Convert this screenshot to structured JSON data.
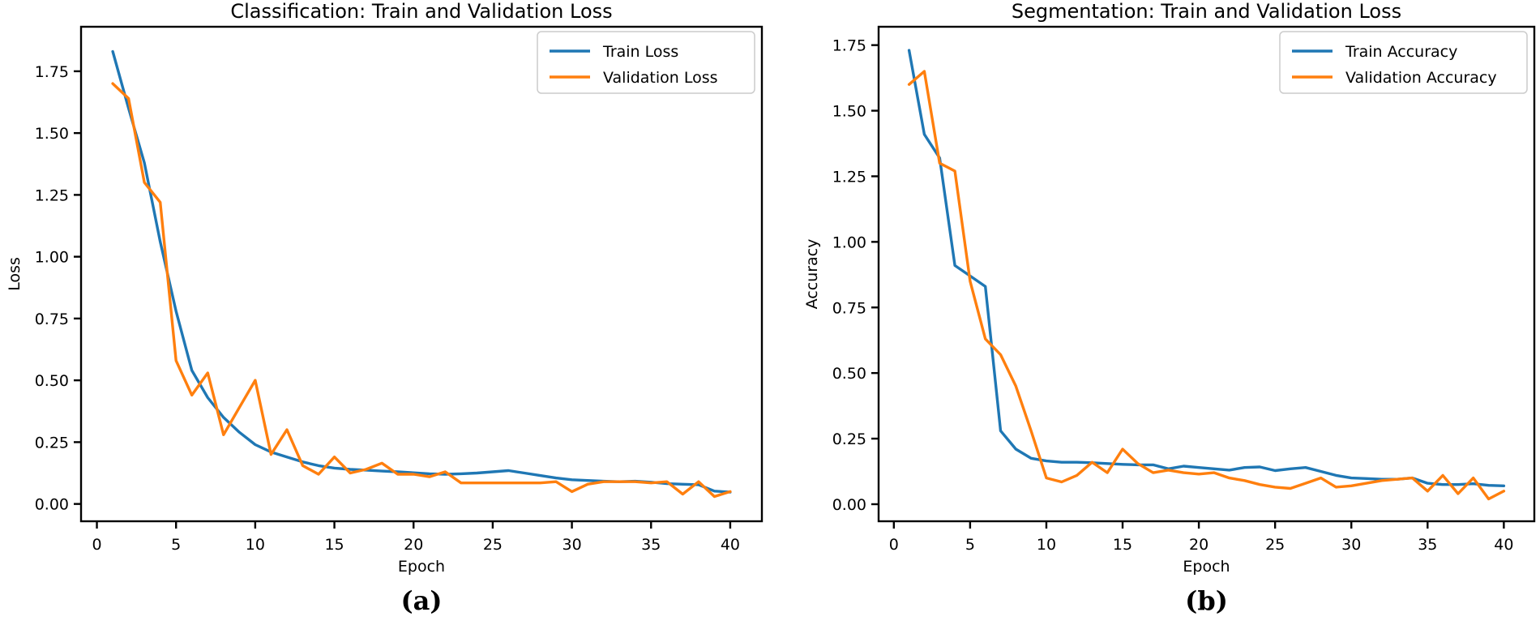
{
  "figure": {
    "background": "#ffffff",
    "text_color": "#000000",
    "spine_color": "#000000"
  },
  "chart_data": [
    {
      "type": "line",
      "title": "Classification: Train and Validation Loss",
      "xlabel": "Epoch",
      "ylabel": "Loss",
      "caption": "(a)",
      "legend_position": "upper right",
      "grid": false,
      "xlim": [
        -1,
        42
      ],
      "ylim": [
        -0.07,
        1.93
      ],
      "xticks": [
        0,
        5,
        10,
        15,
        20,
        25,
        30,
        35,
        40
      ],
      "yticks": [
        0.0,
        0.25,
        0.5,
        0.75,
        1.0,
        1.25,
        1.5,
        1.75
      ],
      "x": [
        1,
        2,
        3,
        4,
        5,
        6,
        7,
        8,
        9,
        10,
        11,
        12,
        13,
        14,
        15,
        16,
        17,
        18,
        19,
        20,
        21,
        22,
        23,
        24,
        25,
        26,
        27,
        28,
        29,
        30,
        31,
        32,
        33,
        34,
        35,
        36,
        37,
        38,
        39,
        40
      ],
      "series": [
        {
          "name": "Train Loss",
          "color": "#1f77b4",
          "values": [
            1.83,
            1.6,
            1.38,
            1.06,
            0.78,
            0.54,
            0.43,
            0.35,
            0.29,
            0.24,
            0.21,
            0.19,
            0.17,
            0.155,
            0.145,
            0.14,
            0.137,
            0.133,
            0.13,
            0.126,
            0.122,
            0.12,
            0.122,
            0.125,
            0.13,
            0.135,
            0.125,
            0.115,
            0.105,
            0.098,
            0.095,
            0.092,
            0.09,
            0.092,
            0.088,
            0.082,
            0.08,
            0.078,
            0.052,
            0.048
          ]
        },
        {
          "name": "Validation Loss",
          "color": "#ff7f0e",
          "values": [
            1.7,
            1.64,
            1.3,
            1.22,
            0.58,
            0.44,
            0.53,
            0.28,
            0.39,
            0.5,
            0.2,
            0.3,
            0.155,
            0.12,
            0.19,
            0.125,
            0.14,
            0.165,
            0.12,
            0.12,
            0.11,
            0.13,
            0.085,
            0.085,
            0.085,
            0.085,
            0.085,
            0.085,
            0.09,
            0.05,
            0.08,
            0.09,
            0.09,
            0.09,
            0.085,
            0.09,
            0.04,
            0.09,
            0.03,
            0.05
          ]
        }
      ]
    },
    {
      "type": "line",
      "title": "Segmentation: Train and Validation Loss",
      "xlabel": "Epoch",
      "ylabel": "Accuracy",
      "caption": "(b)",
      "legend_position": "upper right",
      "grid": false,
      "xlim": [
        -1,
        42
      ],
      "ylim": [
        -0.065,
        1.82
      ],
      "xticks": [
        0,
        5,
        10,
        15,
        20,
        25,
        30,
        35,
        40
      ],
      "yticks": [
        0.0,
        0.25,
        0.5,
        0.75,
        1.0,
        1.25,
        1.5,
        1.75
      ],
      "x": [
        1,
        2,
        3,
        4,
        5,
        6,
        7,
        8,
        9,
        10,
        11,
        12,
        13,
        14,
        15,
        16,
        17,
        18,
        19,
        20,
        21,
        22,
        23,
        24,
        25,
        26,
        27,
        28,
        29,
        30,
        31,
        32,
        33,
        34,
        35,
        36,
        37,
        38,
        39,
        40
      ],
      "series": [
        {
          "name": "Train Accuracy",
          "color": "#1f77b4",
          "values": [
            1.73,
            1.41,
            1.32,
            0.91,
            0.87,
            0.83,
            0.28,
            0.21,
            0.175,
            0.165,
            0.16,
            0.16,
            0.158,
            0.155,
            0.152,
            0.15,
            0.15,
            0.135,
            0.145,
            0.14,
            0.135,
            0.13,
            0.14,
            0.142,
            0.128,
            0.135,
            0.14,
            0.125,
            0.11,
            0.1,
            0.098,
            0.095,
            0.095,
            0.1,
            0.08,
            0.075,
            0.075,
            0.078,
            0.072,
            0.07
          ]
        },
        {
          "name": "Validation Accuracy",
          "color": "#ff7f0e",
          "values": [
            1.6,
            1.65,
            1.3,
            1.27,
            0.85,
            0.63,
            0.57,
            0.45,
            0.28,
            0.1,
            0.085,
            0.11,
            0.16,
            0.12,
            0.21,
            0.155,
            0.12,
            0.13,
            0.12,
            0.115,
            0.12,
            0.1,
            0.09,
            0.075,
            0.065,
            0.06,
            0.08,
            0.1,
            0.065,
            0.07,
            0.08,
            0.09,
            0.095,
            0.1,
            0.05,
            0.11,
            0.04,
            0.1,
            0.02,
            0.05
          ]
        }
      ]
    }
  ]
}
